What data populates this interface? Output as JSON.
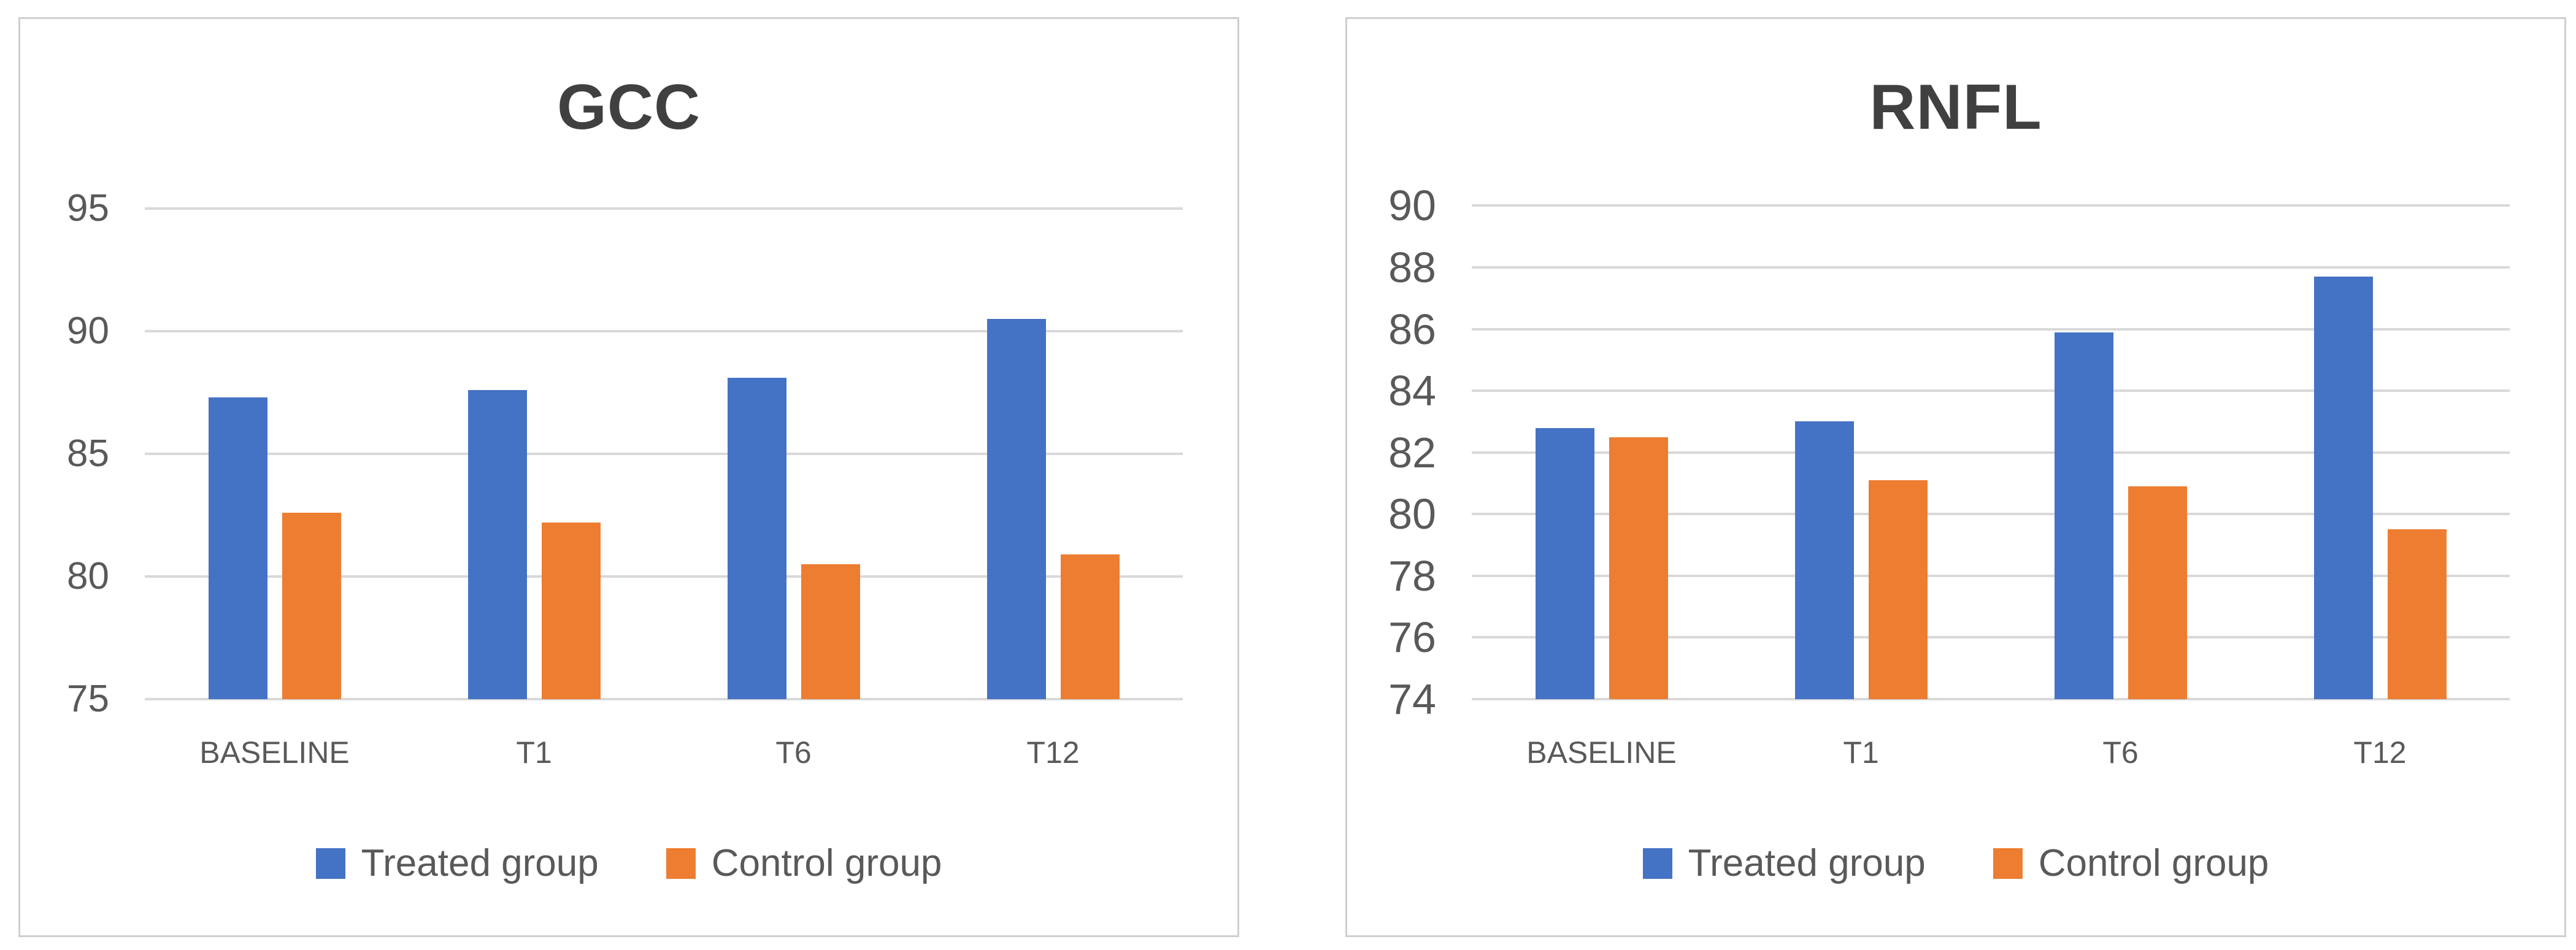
{
  "chart_data": [
    {
      "type": "bar",
      "title": "GCC",
      "categories": [
        "BASELINE",
        "T1",
        "T6",
        "T12"
      ],
      "series": [
        {
          "name": "Treated group",
          "color": "#4472C4",
          "values": [
            87.3,
            87.6,
            88.1,
            90.5
          ]
        },
        {
          "name": "Control group",
          "color": "#ED7D31",
          "values": [
            82.6,
            82.2,
            80.5,
            80.9
          ]
        }
      ],
      "ylim": [
        75,
        97
      ],
      "yticks": [
        75,
        80,
        85,
        90,
        95
      ],
      "xlabel": "",
      "ylabel": "",
      "grid": true,
      "legend_position": "bottom"
    },
    {
      "type": "bar",
      "title": "RNFL",
      "categories": [
        "BASELINE",
        "T1",
        "T6",
        "T12"
      ],
      "series": [
        {
          "name": "Treated group",
          "color": "#4472C4",
          "values": [
            82.8,
            83.0,
            85.9,
            87.7
          ]
        },
        {
          "name": "Control group",
          "color": "#ED7D31",
          "values": [
            82.5,
            81.1,
            80.9,
            79.5
          ]
        }
      ],
      "ylim": [
        74,
        91.5
      ],
      "yticks": [
        74,
        76,
        78,
        80,
        82,
        84,
        86,
        88,
        90
      ],
      "xlabel": "",
      "ylabel": "",
      "grid": true,
      "legend_position": "bottom"
    }
  ],
  "style": {
    "bar_blue": "#4472C4",
    "bar_orange": "#ED7D31",
    "gridline_color": "#D9D9D9",
    "axis_text_color": "#595959",
    "title_color": "#404040",
    "panel_border_color": "#D0CECE",
    "background": "#FFFFFF"
  }
}
